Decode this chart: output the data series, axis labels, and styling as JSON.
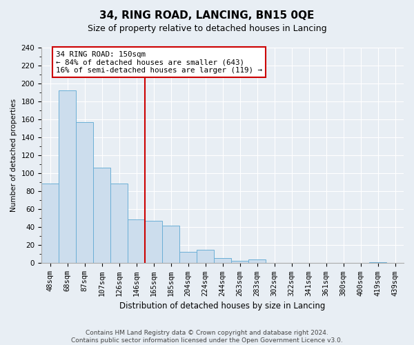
{
  "title": "34, RING ROAD, LANCING, BN15 0QE",
  "subtitle": "Size of property relative to detached houses in Lancing",
  "xlabel": "Distribution of detached houses by size in Lancing",
  "ylabel": "Number of detached properties",
  "bar_labels": [
    "48sqm",
    "68sqm",
    "87sqm",
    "107sqm",
    "126sqm",
    "146sqm",
    "165sqm",
    "185sqm",
    "204sqm",
    "224sqm",
    "244sqm",
    "263sqm",
    "283sqm",
    "302sqm",
    "322sqm",
    "341sqm",
    "361sqm",
    "380sqm",
    "400sqm",
    "419sqm",
    "439sqm"
  ],
  "bar_values": [
    89,
    192,
    157,
    106,
    89,
    49,
    47,
    42,
    13,
    15,
    6,
    3,
    4,
    0,
    0,
    0,
    0,
    0,
    0,
    1,
    0
  ],
  "bar_color": "#ccdded",
  "bar_edge_color": "#6bafd6",
  "vline_x_index": 5,
  "vline_color": "#cc0000",
  "annotation_line1": "34 RING ROAD: 150sqm",
  "annotation_line2": "← 84% of detached houses are smaller (643)",
  "annotation_line3": "16% of semi-detached houses are larger (119) →",
  "annotation_box_color": "white",
  "annotation_box_edge": "#cc0000",
  "ylim": [
    0,
    240
  ],
  "yticks": [
    0,
    20,
    40,
    60,
    80,
    100,
    120,
    140,
    160,
    180,
    200,
    220,
    240
  ],
  "footer_line1": "Contains HM Land Registry data © Crown copyright and database right 2024.",
  "footer_line2": "Contains public sector information licensed under the Open Government Licence v3.0.",
  "bg_color": "#e8eef4",
  "plot_bg_color": "#e8eef4",
  "grid_color": "#ffffff",
  "title_fontsize": 11,
  "subtitle_fontsize": 9,
  "xlabel_fontsize": 8.5,
  "ylabel_fontsize": 7.5,
  "tick_fontsize": 7.5,
  "footer_fontsize": 6.5
}
